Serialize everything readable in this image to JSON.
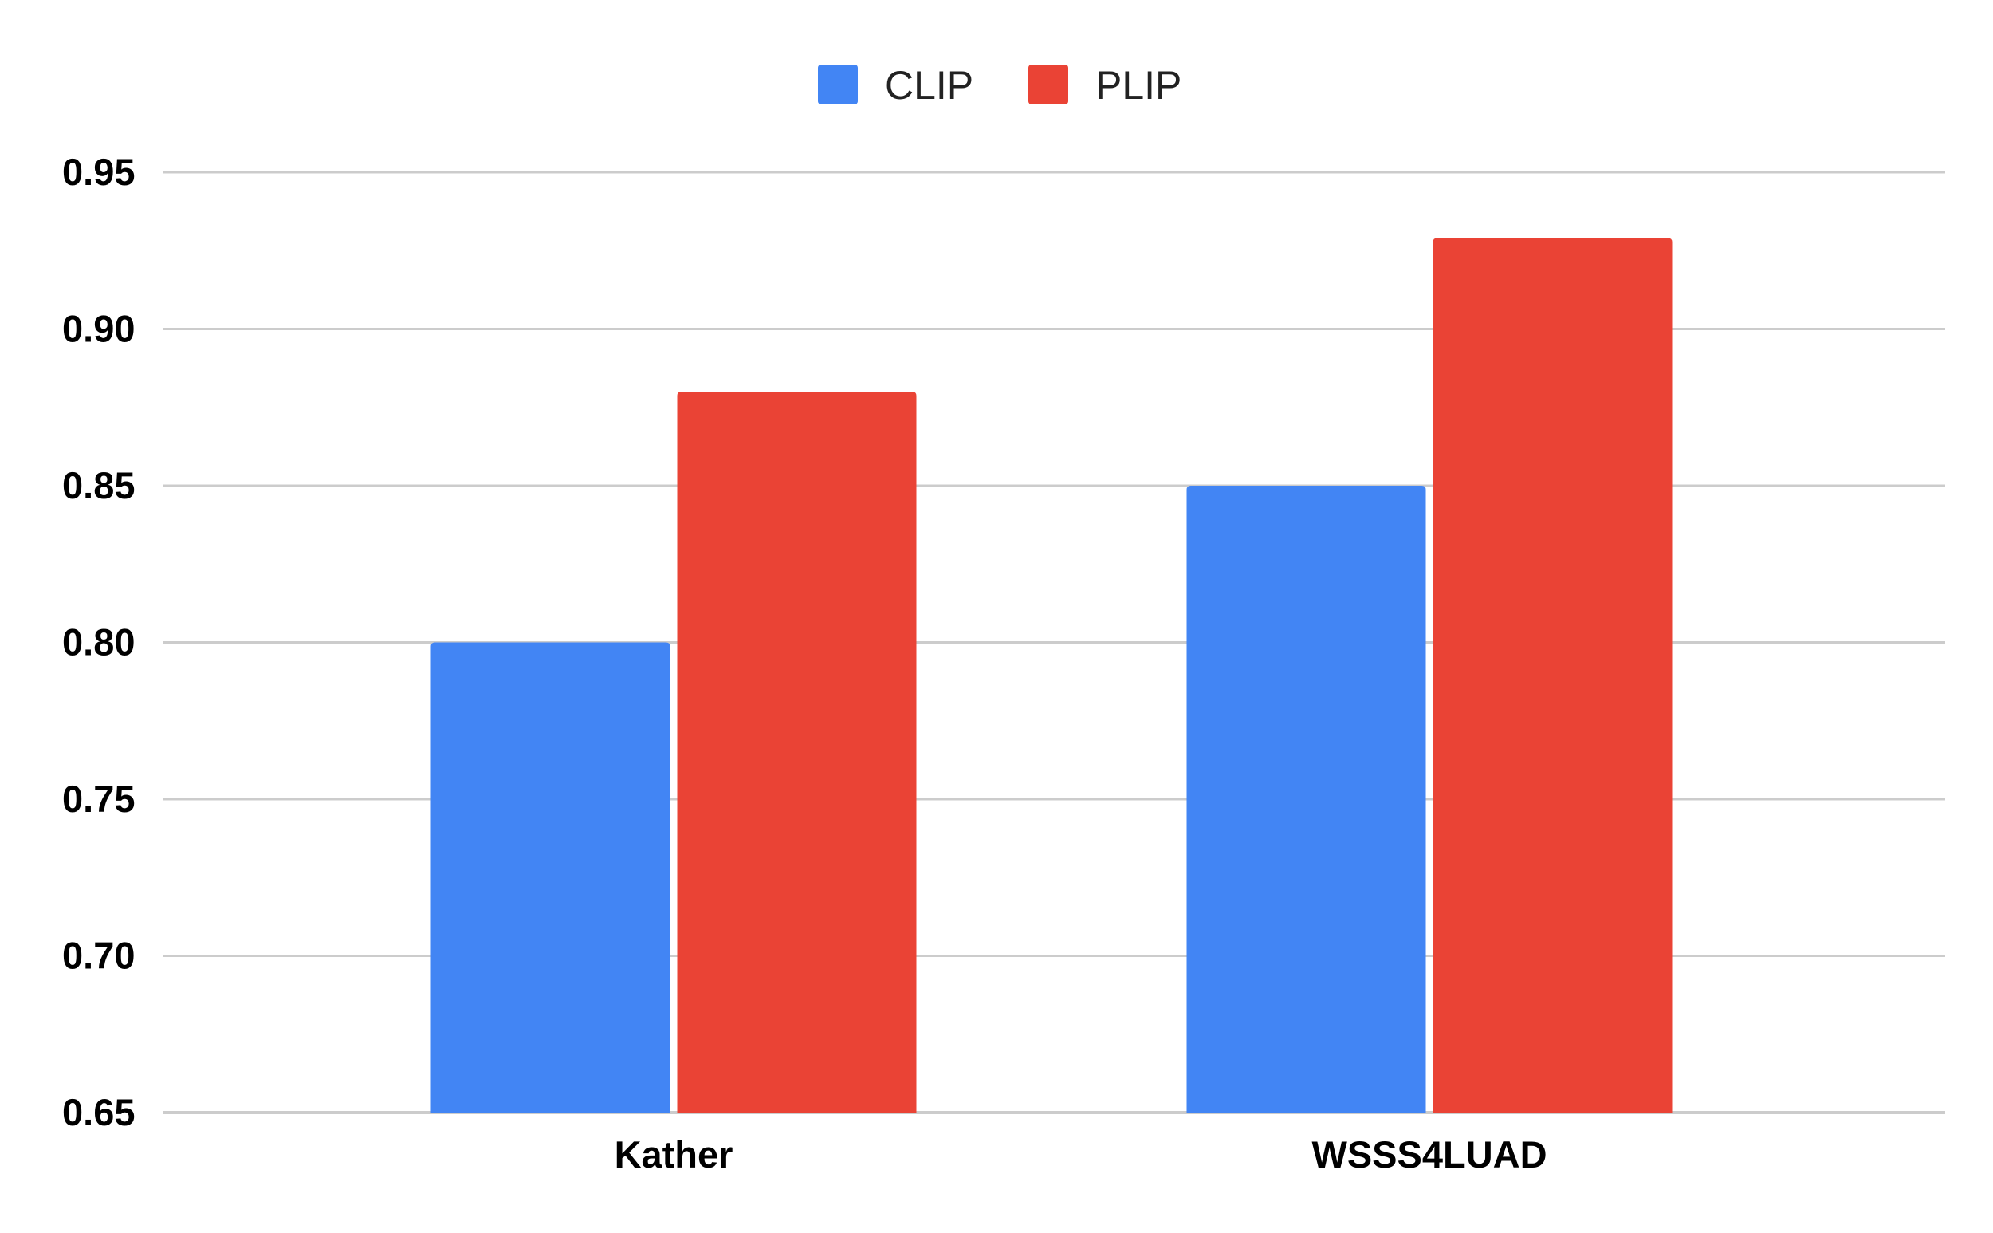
{
  "chart_data": {
    "type": "bar",
    "title": "",
    "xlabel": "",
    "ylabel": "",
    "categories": [
      "Kather",
      "WSSS4LUAD"
    ],
    "series": [
      {
        "name": "CLIP",
        "color": "#4285f4",
        "values": [
          0.8,
          0.85
        ]
      },
      {
        "name": "PLIP",
        "color": "#ea4335",
        "values": [
          0.88,
          0.929
        ]
      }
    ],
    "ylim": [
      0.65,
      0.95
    ],
    "yticks": [
      "0.65",
      "0.70",
      "0.75",
      "0.80",
      "0.85",
      "0.90",
      "0.95"
    ],
    "grid": true,
    "legend_position": "top-center"
  }
}
